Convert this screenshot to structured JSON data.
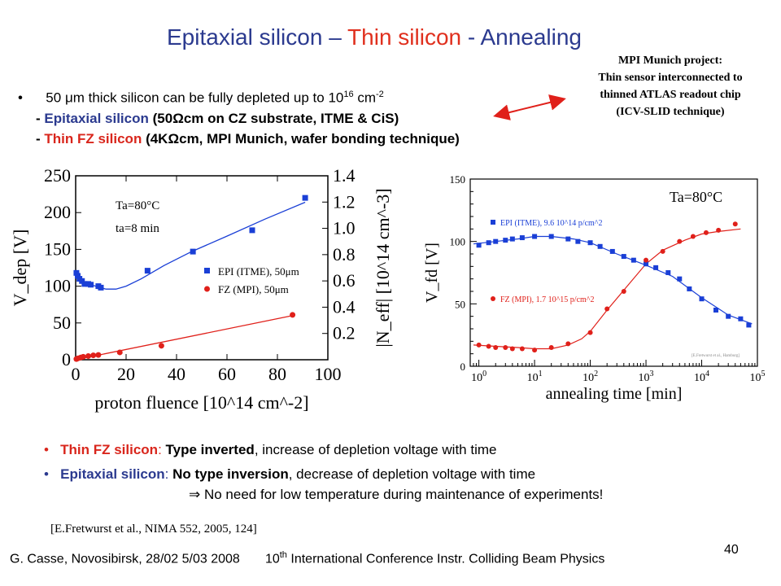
{
  "title": {
    "part1": "Epitaxial  silicon",
    "part2": " – ",
    "part3": "Thin silicon",
    "part4": " - Annealing"
  },
  "mpi_note": {
    "line1": "MPI Munich project:",
    "line2": "Thin sensor interconnected to",
    "line3": "thinned ATLAS readout chip",
    "line4": "(ICV-SLID technique)"
  },
  "bullets": {
    "b1_a": "50 ",
    "b1_mu": "μ",
    "b1_b": "m thick silicon can be fully depleted up to 10",
    "b1_sup": "16",
    "b1_c": " cm",
    "b1_sup2": "-2",
    "b2_a": "- ",
    "b2_b": "Epitaxial silicon",
    "b2_c": " (50",
    "b2_omega": "Ω",
    "b2_d": "cm on CZ substrate, ITME & CiS)",
    "b3_a": "- ",
    "b3_b": "Thin FZ silicon",
    "b3_c": "  (4K",
    "b3_omega": "Ω",
    "b3_d": "cm, MPI Munich, wafer bonding technique)"
  },
  "conclusions": {
    "c1_a": "Thin FZ silicon",
    "c1_b": ": ",
    "c1_c": "Type inverted",
    "c1_d": ", increase of depletion voltage with time",
    "c2_a": "Epitaxial silicon",
    "c2_b": ": ",
    "c2_c": "No type inversion",
    "c2_d": ", decrease of depletion voltage with time",
    "c3_arrow": "⇒",
    "c3_text": " No need for low temperature during maintenance of experiments!"
  },
  "reference": "[E.Fretwurst et al., NIMA 552, 2005, 124]",
  "footer": {
    "left": "G. Casse, Novosibirsk, 28/02 5/03 2008",
    "right_a": "10",
    "right_sup": "th",
    "right_b": " International Conference Instr. Colliding Beam Physics"
  },
  "page_number": "40",
  "colors": {
    "epi": "#1a3fd6",
    "fz": "#e0201a",
    "title_blue": "#2b3a8f",
    "title_red": "#e0301e"
  },
  "chart_data": [
    {
      "type": "scatter",
      "xlabel": "proton fluence [10^14 cm^-2]",
      "ylabel": "V_dep [V]",
      "ylabel_right": "|N_eff| [10^14 cm^-3]",
      "xlim": [
        0,
        100
      ],
      "ylim": [
        0,
        250
      ],
      "ylim_right": [
        0,
        1.4
      ],
      "x_ticks": [
        "0",
        "20",
        "40",
        "60",
        "80",
        "100"
      ],
      "y_ticks": [
        "0",
        "50",
        "100",
        "150",
        "200",
        "250"
      ],
      "y_right_ticks": [
        "0.2",
        "0.4",
        "0.6",
        "0.8",
        "1.0",
        "1.2",
        "1.4"
      ],
      "annotation": {
        "line1": "Ta=80°C",
        "line2": "ta=8 min"
      },
      "series": [
        {
          "name": "EPI (ITME), 50μm",
          "marker": "square",
          "x": [
            0.3,
            0.8,
            1.5,
            2.5,
            3.5,
            5,
            6,
            9,
            10,
            28.5,
            46.5,
            70,
            91
          ],
          "y": [
            118,
            114,
            110,
            107,
            103,
            103,
            102,
            100,
            98,
            121,
            147,
            176,
            220
          ]
        },
        {
          "name": "FZ (MPI), 50μm",
          "marker": "circle",
          "x": [
            0.3,
            1,
            2,
            3,
            5,
            7,
            9,
            17.5,
            34,
            86
          ],
          "y": [
            1,
            2,
            3,
            4,
            5,
            6,
            6.5,
            10,
            19,
            61
          ]
        }
      ],
      "fits": [
        {
          "name": "EPI fit",
          "x": [
            0,
            4,
            8,
            12,
            16,
            20,
            26,
            35,
            46,
            60,
            75,
            91
          ],
          "y": [
            112,
            104,
            100,
            96,
            96,
            100,
            110,
            128,
            147,
            168,
            191,
            214
          ]
        },
        {
          "name": "FZ fit",
          "x": [
            0,
            86
          ],
          "y": [
            0,
            60
          ]
        }
      ]
    },
    {
      "type": "scatter",
      "xscale": "log",
      "xlabel": "annealing time [min]",
      "ylabel": "V_fd [V]",
      "xlim": [
        0.7,
        100000
      ],
      "ylim": [
        0,
        150
      ],
      "x_ticks": [
        "10^0",
        "10^1",
        "10^2",
        "10^3",
        "10^4",
        "10^5"
      ],
      "y_ticks": [
        "0",
        "50",
        "100",
        "150"
      ],
      "annotation": "Ta=80°C",
      "credit": "[E.Fretwurst et al., Hamburg]",
      "series": [
        {
          "name": "EPI (ITME), 9.6 10^14 p/cm^2",
          "marker": "square",
          "x": [
            1,
            1.5,
            2,
            3,
            4,
            6,
            10,
            20,
            40,
            60,
            100,
            150,
            250,
            400,
            600,
            1000,
            1500,
            2500,
            4000,
            6000,
            10000,
            18000,
            30000,
            50000,
            70000
          ],
          "y": [
            97,
            99,
            100,
            101,
            102,
            103,
            104,
            104,
            102,
            100,
            99,
            96,
            92,
            88,
            85,
            82,
            79,
            75,
            70,
            62,
            54,
            45,
            40,
            38,
            33
          ]
        },
        {
          "name": "FZ (MPI), 1.7 10^15 p/cm^2",
          "marker": "circle",
          "x": [
            1,
            1.5,
            2,
            3,
            4,
            6,
            10,
            20,
            40,
            100,
            200,
            400,
            1000,
            2000,
            4000,
            7000,
            12000,
            20000,
            40000
          ],
          "y": [
            17,
            16,
            15,
            15,
            14,
            14,
            13,
            15,
            18,
            27,
            46,
            60,
            85,
            92,
            100,
            104,
            107,
            109,
            114
          ]
        }
      ],
      "fits": [
        {
          "name": "EPI fit",
          "x": [
            0.8,
            2,
            5,
            10,
            20,
            50,
            100,
            300,
            1000,
            3000,
            10000,
            30000,
            80000
          ],
          "y": [
            98,
            100,
            102,
            104,
            104,
            102,
            99,
            90,
            81,
            72,
            55,
            41,
            34
          ]
        },
        {
          "name": "FZ fit",
          "x": [
            0.8,
            2,
            5,
            10,
            20,
            40,
            70,
            100,
            200,
            400,
            1000,
            2000,
            5000,
            10000,
            20000,
            50000
          ],
          "y": [
            17,
            16,
            15,
            14,
            14,
            17,
            22,
            28,
            45,
            61,
            82,
            93,
            101,
            106,
            108,
            110
          ]
        }
      ]
    }
  ]
}
